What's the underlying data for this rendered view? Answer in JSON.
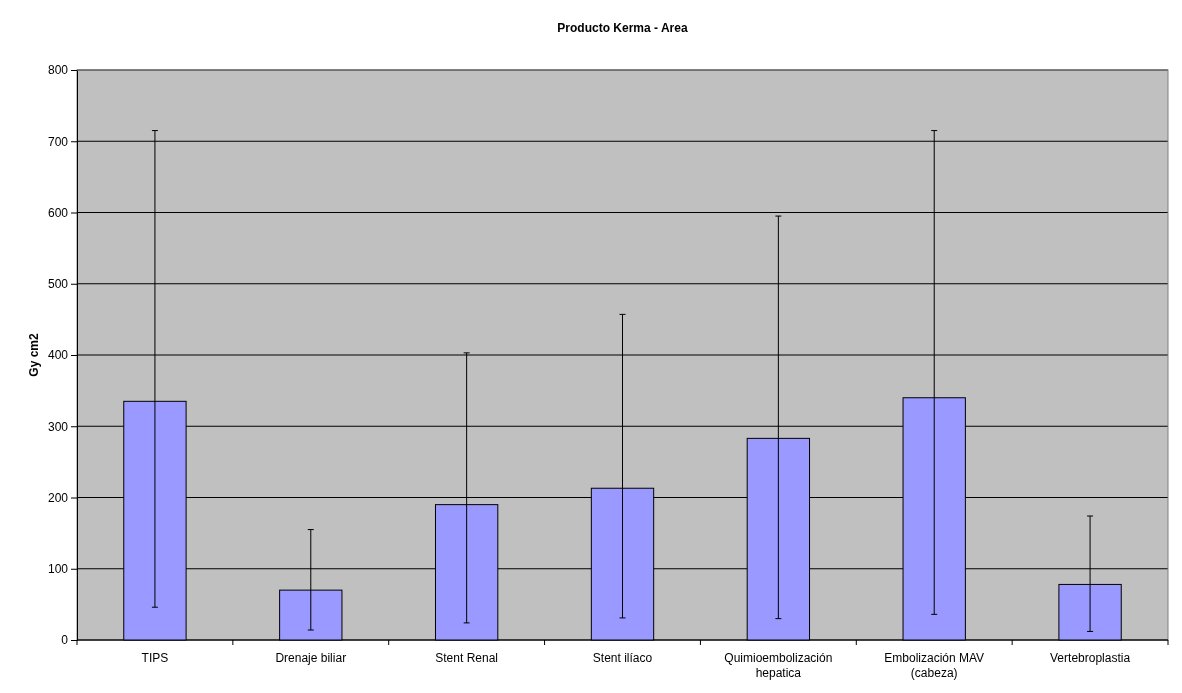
{
  "chart_data": {
    "type": "bar",
    "title": "Producto Kerma - Area",
    "ylabel": "Gy cm2",
    "categories": [
      "TIPS",
      "Drenaje biliar",
      "Stent Renal",
      "Stent ilíaco",
      "Quimioembolización hepatica",
      "Embolización MAV (cabeza)",
      "Vertebroplastia"
    ],
    "values": [
      335,
      70,
      190,
      213,
      283,
      340,
      78
    ],
    "errors": [
      [
        46,
        715
      ],
      [
        14,
        155
      ],
      [
        24,
        403
      ],
      [
        31,
        457
      ],
      [
        30,
        595
      ],
      [
        36,
        715
      ],
      [
        12,
        174
      ]
    ],
    "color": "#9999ff",
    "ylim": [
      0,
      800
    ],
    "yticks": [
      0,
      100,
      200,
      300,
      400,
      500,
      600,
      700,
      800
    ],
    "grid": "y"
  }
}
